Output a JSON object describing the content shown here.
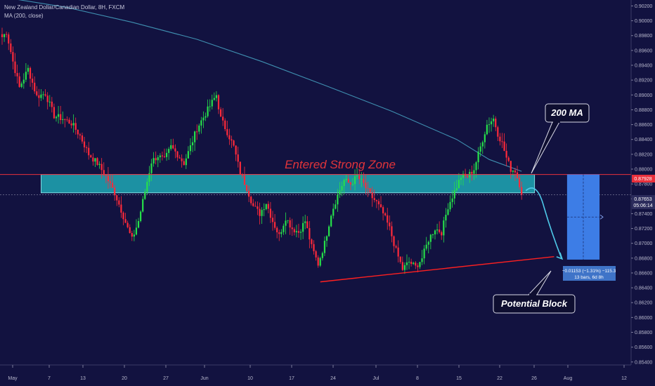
{
  "header": {
    "symbol_line": "New Zealand Dollar/Canadian Dollar, 8H, FXCM",
    "ma_line": "MA (200, close)"
  },
  "colors": {
    "background": "#121240",
    "up_candle": "#26e04a",
    "down_candle": "#ff2a3a",
    "ma_line": "#3f8fb0",
    "zone_fill": "#1fa8b5",
    "trendline": "#ff2020",
    "projection_box": "#3d7de6",
    "arrow": "#4ec9e8"
  },
  "annotations": {
    "zone_label": "Entered Strong Zone",
    "ma_callout": "200 MA",
    "block_callout": "Potential Block",
    "measure_line1": "−0.01153 (−1.31%) −115.3",
    "measure_line2": "13 bars, 6d 8h"
  },
  "price_labels": {
    "current_price": "0.87928",
    "ref_price": "0.87653",
    "countdown": "05:06:14"
  },
  "chart_data": {
    "type": "candlestick",
    "title": "New Zealand Dollar/Canadian Dollar, 8H, FXCM",
    "ylim": [
      0.8536,
      0.9028
    ],
    "y_ticks": [
      "0.90200",
      "0.90000",
      "0.89800",
      "0.89600",
      "0.89400",
      "0.89200",
      "0.89000",
      "0.88800",
      "0.88600",
      "0.88400",
      "0.88200",
      "0.88000",
      "0.87800",
      "0.87600",
      "0.87400",
      "0.87200",
      "0.87000",
      "0.86800",
      "0.86600",
      "0.86400",
      "0.86200",
      "0.86000",
      "0.85800",
      "0.85600",
      "0.85400"
    ],
    "x_ticks": [
      "May",
      "7",
      "13",
      "20",
      "27",
      "Jun",
      "10",
      "17",
      "24",
      "Jul",
      "8",
      "15",
      "22",
      "26",
      "Aug",
      "12"
    ],
    "close_path": [
      {
        "i": 0,
        "p": 0.8978
      },
      {
        "i": 2,
        "p": 0.8985
      },
      {
        "i": 5,
        "p": 0.8945
      },
      {
        "i": 8,
        "p": 0.891
      },
      {
        "i": 12,
        "p": 0.8935
      },
      {
        "i": 16,
        "p": 0.8898
      },
      {
        "i": 20,
        "p": 0.8902
      },
      {
        "i": 24,
        "p": 0.8872
      },
      {
        "i": 28,
        "p": 0.8868
      },
      {
        "i": 32,
        "p": 0.8862
      },
      {
        "i": 36,
        "p": 0.8845
      },
      {
        "i": 40,
        "p": 0.882
      },
      {
        "i": 44,
        "p": 0.8808
      },
      {
        "i": 48,
        "p": 0.879
      },
      {
        "i": 52,
        "p": 0.8768
      },
      {
        "i": 55,
        "p": 0.8745
      },
      {
        "i": 58,
        "p": 0.872
      },
      {
        "i": 60,
        "p": 0.8705
      },
      {
        "i": 63,
        "p": 0.873
      },
      {
        "i": 66,
        "p": 0.877
      },
      {
        "i": 69,
        "p": 0.881
      },
      {
        "i": 72,
        "p": 0.8818
      },
      {
        "i": 75,
        "p": 0.8812
      },
      {
        "i": 78,
        "p": 0.883
      },
      {
        "i": 81,
        "p": 0.882
      },
      {
        "i": 84,
        "p": 0.8808
      },
      {
        "i": 87,
        "p": 0.883
      },
      {
        "i": 90,
        "p": 0.8855
      },
      {
        "i": 93,
        "p": 0.887
      },
      {
        "i": 96,
        "p": 0.8885
      },
      {
        "i": 99,
        "p": 0.89
      },
      {
        "i": 101,
        "p": 0.8868
      },
      {
        "i": 104,
        "p": 0.885
      },
      {
        "i": 107,
        "p": 0.883
      },
      {
        "i": 110,
        "p": 0.8795
      },
      {
        "i": 113,
        "p": 0.8775
      },
      {
        "i": 116,
        "p": 0.875
      },
      {
        "i": 119,
        "p": 0.874
      },
      {
        "i": 122,
        "p": 0.8755
      },
      {
        "i": 125,
        "p": 0.873
      },
      {
        "i": 128,
        "p": 0.871
      },
      {
        "i": 131,
        "p": 0.8735
      },
      {
        "i": 134,
        "p": 0.872
      },
      {
        "i": 137,
        "p": 0.8715
      },
      {
        "i": 140,
        "p": 0.873
      },
      {
        "i": 143,
        "p": 0.8695
      },
      {
        "i": 146,
        "p": 0.8672
      },
      {
        "i": 149,
        "p": 0.87
      },
      {
        "i": 152,
        "p": 0.874
      },
      {
        "i": 155,
        "p": 0.8765
      },
      {
        "i": 158,
        "p": 0.8785
      },
      {
        "i": 161,
        "p": 0.878
      },
      {
        "i": 164,
        "p": 0.879
      },
      {
        "i": 167,
        "p": 0.878
      },
      {
        "i": 170,
        "p": 0.8765
      },
      {
        "i": 173,
        "p": 0.8755
      },
      {
        "i": 176,
        "p": 0.874
      },
      {
        "i": 179,
        "p": 0.872
      },
      {
        "i": 182,
        "p": 0.869
      },
      {
        "i": 185,
        "p": 0.8665
      },
      {
        "i": 188,
        "p": 0.8675
      },
      {
        "i": 191,
        "p": 0.8668
      },
      {
        "i": 194,
        "p": 0.868
      },
      {
        "i": 197,
        "p": 0.8705
      },
      {
        "i": 200,
        "p": 0.872
      },
      {
        "i": 203,
        "p": 0.8715
      },
      {
        "i": 206,
        "p": 0.875
      },
      {
        "i": 209,
        "p": 0.877
      },
      {
        "i": 212,
        "p": 0.879
      },
      {
        "i": 215,
        "p": 0.879
      },
      {
        "i": 218,
        "p": 0.88
      },
      {
        "i": 221,
        "p": 0.883
      },
      {
        "i": 224,
        "p": 0.886
      },
      {
        "i": 227,
        "p": 0.8868
      },
      {
        "i": 229,
        "p": 0.8848
      },
      {
        "i": 231,
        "p": 0.8835
      },
      {
        "i": 233,
        "p": 0.8815
      },
      {
        "i": 235,
        "p": 0.88
      },
      {
        "i": 237,
        "p": 0.8798
      },
      {
        "i": 239,
        "p": 0.878
      },
      {
        "i": 240,
        "p": 0.8768
      }
    ],
    "ma200": [
      {
        "i": 0,
        "p": 0.9032
      },
      {
        "i": 30,
        "p": 0.9018
      },
      {
        "i": 60,
        "p": 0.8998
      },
      {
        "i": 90,
        "p": 0.8975
      },
      {
        "i": 120,
        "p": 0.8945
      },
      {
        "i": 150,
        "p": 0.8912
      },
      {
        "i": 180,
        "p": 0.8878
      },
      {
        "i": 210,
        "p": 0.884
      },
      {
        "i": 225,
        "p": 0.8813
      },
      {
        "i": 240,
        "p": 0.8797
      }
    ],
    "strong_zone": {
      "i_start": 18,
      "i_end": 246,
      "price_top": 0.87928,
      "price_bottom": 0.8768
    },
    "support_trendline": {
      "i_start": 147,
      "p_start": 0.8648,
      "i_end": 255,
      "p_end": 0.8682
    },
    "projection": {
      "i_start": 261,
      "i_end": 276,
      "price_top": 0.87928,
      "price_bottom": 0.8678
    },
    "current_price": 0.87928,
    "ref_price": 0.87653
  }
}
